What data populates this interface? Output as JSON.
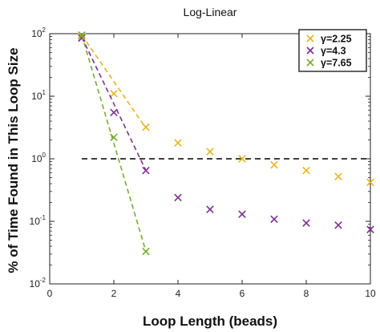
{
  "chart_data": {
    "type": "scatter",
    "title": "Log-Linear",
    "xlabel": "Loop Length (beads)",
    "ylabel": "% of Time Found in This Loop Size",
    "xlim": [
      0,
      10
    ],
    "ylim": [
      0.01,
      100
    ],
    "yscale": "log",
    "grid": false,
    "legend_position": "top-right",
    "x_ticks": [
      {
        "value": 0,
        "label": "0"
      },
      {
        "value": 2,
        "label": "2"
      },
      {
        "value": 4,
        "label": "4"
      },
      {
        "value": 6,
        "label": "6"
      },
      {
        "value": 8,
        "label": "8"
      },
      {
        "value": 10,
        "label": "10"
      }
    ],
    "y_ticks": [
      {
        "value": 100,
        "base": "10",
        "exp": "2"
      },
      {
        "value": 10,
        "base": "10",
        "exp": "1"
      },
      {
        "value": 1,
        "base": "10",
        "exp": "0"
      },
      {
        "value": 0.1,
        "base": "10",
        "exp": "-1"
      },
      {
        "value": 0.01,
        "base": "10",
        "exp": "-2"
      }
    ],
    "reference_line": {
      "y": 1,
      "style": "dashed",
      "color": "#000000"
    },
    "series": [
      {
        "name": "γ=2.25",
        "color": "#E8B422",
        "marker": "x",
        "x": [
          1,
          2,
          3,
          4,
          5,
          6,
          7,
          8,
          9,
          10
        ],
        "y": [
          90,
          11,
          3.2,
          1.8,
          1.3,
          1.0,
          0.8,
          0.65,
          0.52,
          0.42
        ],
        "fit_x": [
          1,
          3
        ],
        "fit_y": [
          95,
          3.1
        ]
      },
      {
        "name": "γ=4.3",
        "color": "#7E2F8E",
        "marker": "x",
        "x": [
          1,
          2,
          3,
          4,
          5,
          6,
          7,
          8,
          9,
          10
        ],
        "y": [
          85,
          5.5,
          0.65,
          0.24,
          0.155,
          0.13,
          0.108,
          0.094,
          0.087,
          0.074
        ],
        "fit_x": [
          1,
          3
        ],
        "fit_y": [
          88,
          0.65
        ]
      },
      {
        "name": "γ=7.65",
        "color": "#77AC30",
        "marker": "x",
        "x": [
          1,
          2,
          3
        ],
        "y": [
          95,
          2.2,
          0.033
        ],
        "fit_x": [
          1,
          3
        ],
        "fit_y": [
          95,
          0.033
        ]
      }
    ]
  }
}
